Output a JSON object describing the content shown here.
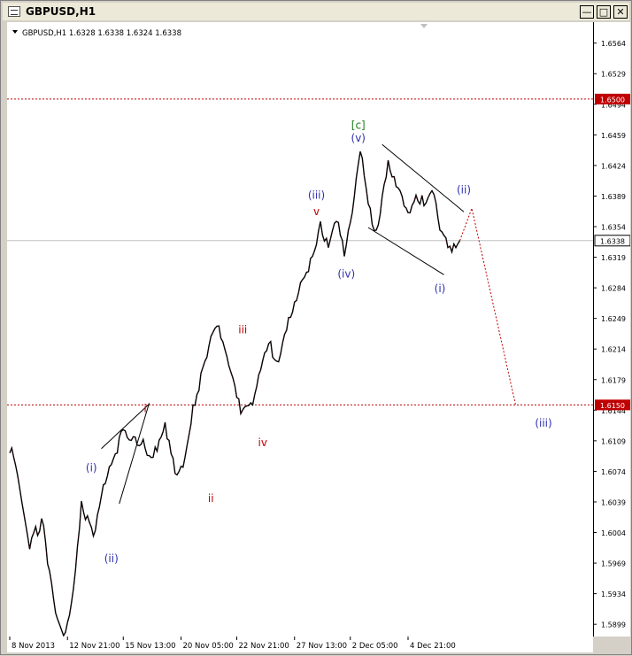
{
  "window": {
    "title": "GBPUSD,H1"
  },
  "header": {
    "symbol_info": "GBPUSD,H1  1.6328 1.6338 1.6324 1.6338"
  },
  "colors": {
    "background": "#ffffff",
    "candle": "#000000",
    "down_accent": "#c00000",
    "level_line": "#c00000",
    "current_price_line": "#c0c0c0",
    "wave_blue": "#3030b0",
    "wave_red": "#c00000",
    "wave_green": "#208020"
  },
  "chart_data": {
    "type": "line",
    "title": "GBPUSD,H1",
    "ohlc_last": {
      "open": 1.6328,
      "high": 1.6338,
      "low": 1.6324,
      "close": 1.6338
    },
    "y_ticks": [
      "1.6564",
      "1.6529",
      "1.6494",
      "1.6459",
      "1.6424",
      "1.6389",
      "1.6354",
      "1.6319",
      "1.6284",
      "1.6249",
      "1.6214",
      "1.6179",
      "1.6144",
      "1.6109",
      "1.6074",
      "1.6039",
      "1.6004",
      "1.5969",
      "1.5934",
      "1.5899"
    ],
    "ylim": [
      1.5885,
      1.6588
    ],
    "x_ticks": [
      "8 Nov 2013",
      "12 Nov 21:00",
      "15 Nov 13:00",
      "20 Nov 05:00",
      "22 Nov 21:00",
      "27 Nov 13:00",
      "2 Dec 05:00",
      "4 Dec 21:00"
    ],
    "price_path": {
      "x": [
        0,
        1,
        3,
        5,
        8,
        10,
        12,
        14,
        16,
        18,
        21,
        24,
        27,
        28,
        30,
        33,
        36,
        39,
        42,
        44,
        46,
        49,
        52,
        55,
        58,
        61,
        63,
        65,
        67,
        70,
        73,
        76,
        78,
        80,
        82,
        84,
        86,
        88,
        90,
        92,
        95,
        98,
        100,
        102,
        104,
        106,
        108,
        110,
        111,
        112,
        113
      ],
      "y": [
        1.6095,
        1.609,
        1.604,
        1.5985,
        1.602,
        1.596,
        1.5905,
        1.589,
        1.594,
        1.604,
        1.6,
        1.606,
        1.6095,
        1.612,
        1.611,
        1.6105,
        1.609,
        1.613,
        1.607,
        1.609,
        1.615,
        1.62,
        1.624,
        1.6195,
        1.614,
        1.615,
        1.619,
        1.622,
        1.62,
        1.625,
        1.629,
        1.632,
        1.636,
        1.633,
        1.636,
        1.632,
        1.637,
        1.644,
        1.638,
        1.635,
        1.643,
        1.6395,
        1.637,
        1.639,
        1.6378,
        1.6395,
        1.635,
        1.633,
        1.6325,
        1.633,
        1.6338
      ]
    },
    "projection": {
      "x": [
        113,
        116,
        127
      ],
      "y": [
        1.6338,
        1.6375,
        1.615
      ]
    },
    "levels": [
      {
        "price": 1.65,
        "label": "1.6500"
      },
      {
        "price": 1.615,
        "label": "1.6150"
      }
    ],
    "current_price": {
      "price": 1.6338,
      "label": "1.6338"
    },
    "annotations": [
      {
        "text": "[c]",
        "x": 87.5,
        "y": 1.6466,
        "color": "green"
      },
      {
        "text": "(v)",
        "x": 87.5,
        "y": 1.6451,
        "color": "blue"
      },
      {
        "text": "(ii)",
        "x": 114,
        "y": 1.6392,
        "color": "blue"
      },
      {
        "text": "(iii)",
        "x": 77,
        "y": 1.6386,
        "color": "blue"
      },
      {
        "text": "v",
        "x": 77,
        "y": 1.6367,
        "color": "red"
      },
      {
        "text": "(iv)",
        "x": 84.5,
        "y": 1.6296,
        "color": "blue"
      },
      {
        "text": "(i)",
        "x": 108,
        "y": 1.6279,
        "color": "blue"
      },
      {
        "text": "iii",
        "x": 58.5,
        "y": 1.6232,
        "color": "red"
      },
      {
        "text": "i",
        "x": 34,
        "y": 1.6142,
        "color": "red"
      },
      {
        "text": "(iii)",
        "x": 134,
        "y": 1.6125,
        "color": "blue"
      },
      {
        "text": "iv",
        "x": 63.5,
        "y": 1.6103,
        "color": "red"
      },
      {
        "text": "(i)",
        "x": 20.5,
        "y": 1.6074,
        "color": "blue"
      },
      {
        "text": "ii",
        "x": 50.5,
        "y": 1.6039,
        "color": "red"
      },
      {
        "text": "(ii)",
        "x": 25.5,
        "y": 1.597,
        "color": "blue"
      }
    ],
    "trendlines": [
      {
        "x": [
          23,
          35
        ],
        "y": [
          1.61,
          1.6151
        ]
      },
      {
        "x": [
          27.5,
          35
        ],
        "y": [
          1.6037,
          1.6152
        ]
      },
      {
        "x": [
          93.5,
          114
        ],
        "y": [
          1.6448,
          1.6371
        ]
      },
      {
        "x": [
          90,
          109
        ],
        "y": [
          1.6353,
          1.6299
        ]
      }
    ]
  }
}
